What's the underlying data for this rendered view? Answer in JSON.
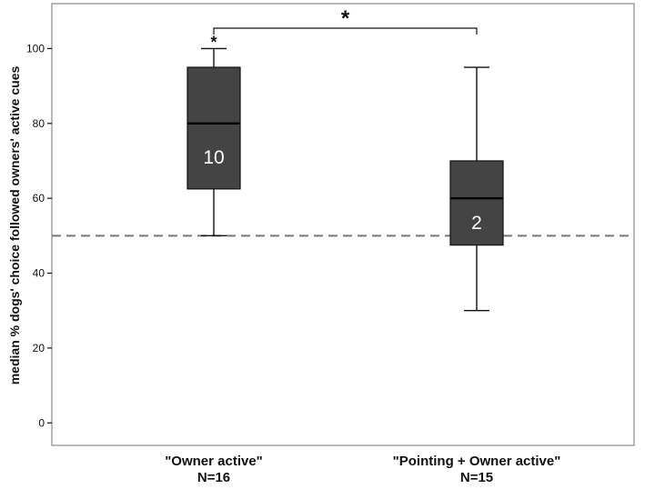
{
  "chart_data": {
    "type": "box",
    "ylabel": "median % dogs' choice followed owners' active cues",
    "ylim": [
      -6,
      112
    ],
    "yticks": [
      0,
      20,
      40,
      60,
      80,
      100
    ],
    "reference_line": 50,
    "categories": [
      {
        "label": "\"Owner active\"",
        "n_label": "N=16",
        "box_label": "10",
        "min": 50,
        "q1": 62.5,
        "median": 80,
        "q3": 95,
        "max": 100,
        "outlier_star": "*"
      },
      {
        "label": "\"Pointing + Owner active\"",
        "n_label": "N=15",
        "box_label": "2",
        "min": 30,
        "q1": 47.5,
        "median": 60,
        "q3": 70,
        "max": 95
      }
    ],
    "significance": {
      "from": 0,
      "to": 1,
      "label": "*"
    },
    "colors": {
      "box_fill": "#444444",
      "stroke": "#111111",
      "reference": "#777777",
      "frame": "#888888"
    }
  }
}
